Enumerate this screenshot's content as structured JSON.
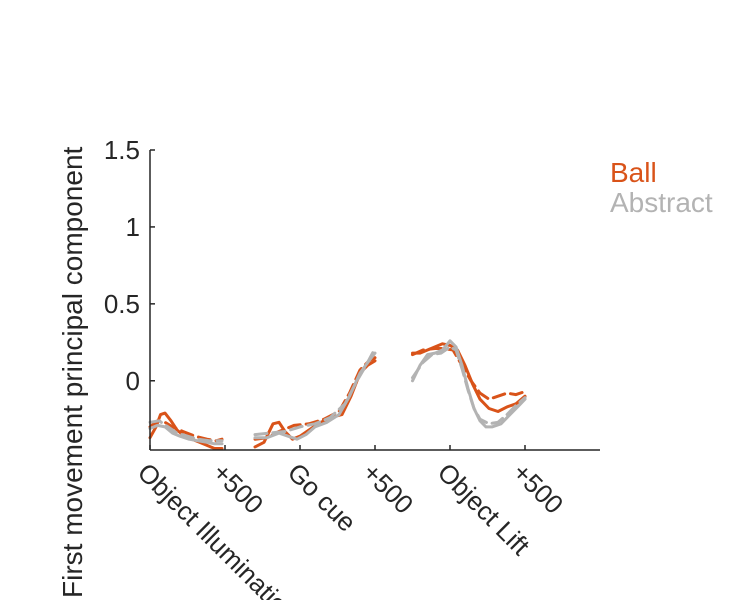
{
  "chart_data": {
    "type": "line",
    "ylabel": "First movement principal component",
    "ylim": [
      -0.45,
      1.5
    ],
    "yticks": [
      {
        "value": 0,
        "label": "0"
      },
      {
        "value": 0.5,
        "label": "0.5"
      },
      {
        "value": 1,
        "label": "1"
      },
      {
        "value": 1.5,
        "label": "1.5"
      }
    ],
    "xlim": [
      0,
      3000
    ],
    "xticks": [
      {
        "value": 0,
        "label": "Object Illumination"
      },
      {
        "value": 500,
        "label": "+500"
      },
      {
        "value": 1000,
        "label": "Go cue"
      },
      {
        "value": 1500,
        "label": "+500"
      },
      {
        "value": 2000,
        "label": "Object Lift"
      },
      {
        "value": 2500,
        "label": "+500"
      }
    ],
    "legend": {
      "position": "top-right",
      "entries": [
        "Ball",
        "Abstract"
      ]
    },
    "grid": false,
    "segments": [
      {
        "name": "Object Illumination",
        "x_start": 0,
        "x_end": 500
      },
      {
        "name": "Go cue",
        "x_start": 700,
        "x_end": 1700
      },
      {
        "name": "Object Lift",
        "x_start": 1750,
        "x_end": 2500
      }
    ],
    "series": [
      {
        "name": "Ball",
        "color": "#d95319",
        "lines": [
          {
            "style": "solid",
            "segment": 0,
            "points": [
              [
                0,
                -0.37
              ],
              [
                40,
                -0.3
              ],
              [
                70,
                -0.22
              ],
              [
                100,
                -0.21
              ],
              [
                140,
                -0.26
              ],
              [
                180,
                -0.32
              ],
              [
                230,
                -0.36
              ],
              [
                280,
                -0.38
              ],
              [
                330,
                -0.4
              ],
              [
                380,
                -0.42
              ],
              [
                430,
                -0.44
              ],
              [
                480,
                -0.44
              ]
            ]
          },
          {
            "style": "dashed",
            "segment": 0,
            "points": [
              [
                0,
                -0.3
              ],
              [
                50,
                -0.26
              ],
              [
                100,
                -0.27
              ],
              [
                150,
                -0.3
              ],
              [
                220,
                -0.33
              ],
              [
                300,
                -0.36
              ],
              [
                380,
                -0.38
              ],
              [
                440,
                -0.39
              ],
              [
                480,
                -0.38
              ]
            ]
          },
          {
            "style": "solid",
            "segment": 1,
            "points": [
              [
                700,
                -0.43
              ],
              [
                760,
                -0.4
              ],
              [
                820,
                -0.28
              ],
              [
                860,
                -0.27
              ],
              [
                900,
                -0.33
              ],
              [
                950,
                -0.38
              ],
              [
                1000,
                -0.36
              ],
              [
                1060,
                -0.32
              ],
              [
                1120,
                -0.28
              ],
              [
                1200,
                -0.24
              ],
              [
                1280,
                -0.22
              ],
              [
                1340,
                -0.1
              ],
              [
                1400,
                0.05
              ],
              [
                1450,
                0.1
              ],
              [
                1500,
                0.13
              ]
            ]
          },
          {
            "style": "dashed",
            "segment": 1,
            "points": [
              [
                700,
                -0.38
              ],
              [
                780,
                -0.37
              ],
              [
                860,
                -0.33
              ],
              [
                960,
                -0.29
              ],
              [
                1060,
                -0.28
              ],
              [
                1160,
                -0.25
              ],
              [
                1260,
                -0.2
              ],
              [
                1330,
                -0.08
              ],
              [
                1400,
                0.07
              ],
              [
                1460,
                0.13
              ],
              [
                1500,
                0.15
              ]
            ]
          },
          {
            "style": "solid",
            "segment": 2,
            "points": [
              [
                1750,
                0.18
              ],
              [
                1800,
                0.18
              ],
              [
                1850,
                0.2
              ],
              [
                1900,
                0.22
              ],
              [
                1950,
                0.24
              ],
              [
                2000,
                0.23
              ],
              [
                2050,
                0.2
              ],
              [
                2100,
                0.1
              ],
              [
                2150,
                -0.02
              ],
              [
                2200,
                -0.12
              ],
              [
                2260,
                -0.18
              ],
              [
                2320,
                -0.2
              ],
              [
                2380,
                -0.17
              ],
              [
                2440,
                -0.15
              ],
              [
                2500,
                -0.1
              ]
            ]
          },
          {
            "style": "dashed",
            "segment": 2,
            "points": [
              [
                1750,
                0.17
              ],
              [
                1820,
                0.2
              ],
              [
                1900,
                0.21
              ],
              [
                1960,
                0.21
              ],
              [
                2020,
                0.2
              ],
              [
                2080,
                0.1
              ],
              [
                2140,
                0.0
              ],
              [
                2200,
                -0.08
              ],
              [
                2260,
                -0.12
              ],
              [
                2320,
                -0.1
              ],
              [
                2380,
                -0.08
              ],
              [
                2440,
                -0.09
              ],
              [
                2500,
                -0.07
              ]
            ]
          }
        ]
      },
      {
        "name": "Abstract",
        "color": "#b3b3b3",
        "lines": [
          {
            "style": "solid",
            "segment": 0,
            "points": [
              [
                0,
                -0.31
              ],
              [
                50,
                -0.29
              ],
              [
                100,
                -0.3
              ],
              [
                150,
                -0.34
              ],
              [
                200,
                -0.36
              ],
              [
                260,
                -0.38
              ],
              [
                320,
                -0.39
              ],
              [
                380,
                -0.4
              ],
              [
                430,
                -0.41
              ],
              [
                480,
                -0.41
              ]
            ]
          },
          {
            "style": "dashed",
            "segment": 0,
            "points": [
              [
                0,
                -0.27
              ],
              [
                60,
                -0.26
              ],
              [
                120,
                -0.3
              ],
              [
                180,
                -0.34
              ],
              [
                250,
                -0.36
              ],
              [
                320,
                -0.38
              ],
              [
                400,
                -0.39
              ],
              [
                480,
                -0.39
              ]
            ]
          },
          {
            "style": "solid",
            "segment": 1,
            "points": [
              [
                700,
                -0.37
              ],
              [
                780,
                -0.37
              ],
              [
                860,
                -0.34
              ],
              [
                920,
                -0.36
              ],
              [
                980,
                -0.38
              ],
              [
                1040,
                -0.35
              ],
              [
                1100,
                -0.3
              ],
              [
                1180,
                -0.27
              ],
              [
                1260,
                -0.22
              ],
              [
                1330,
                -0.1
              ],
              [
                1400,
                0.05
              ],
              [
                1460,
                0.13
              ],
              [
                1500,
                0.18
              ]
            ]
          },
          {
            "style": "dashed",
            "segment": 1,
            "points": [
              [
                700,
                -0.35
              ],
              [
                800,
                -0.34
              ],
              [
                900,
                -0.33
              ],
              [
                1000,
                -0.3
              ],
              [
                1100,
                -0.28
              ],
              [
                1200,
                -0.24
              ],
              [
                1300,
                -0.15
              ],
              [
                1380,
                0.0
              ],
              [
                1440,
                0.1
              ],
              [
                1500,
                0.21
              ]
            ]
          },
          {
            "style": "solid",
            "segment": 2,
            "points": [
              [
                1750,
                0.0
              ],
              [
                1800,
                0.1
              ],
              [
                1850,
                0.17
              ],
              [
                1900,
                0.18
              ],
              [
                1950,
                0.2
              ],
              [
                2000,
                0.26
              ],
              [
                2040,
                0.22
              ],
              [
                2080,
                0.1
              ],
              [
                2120,
                -0.05
              ],
              [
                2160,
                -0.18
              ],
              [
                2200,
                -0.26
              ],
              [
                2240,
                -0.3
              ],
              [
                2280,
                -0.3
              ],
              [
                2340,
                -0.28
              ],
              [
                2400,
                -0.22
              ],
              [
                2460,
                -0.16
              ],
              [
                2500,
                -0.12
              ]
            ]
          },
          {
            "style": "dashed",
            "segment": 2,
            "points": [
              [
                1750,
                0.02
              ],
              [
                1820,
                0.12
              ],
              [
                1880,
                0.17
              ],
              [
                1940,
                0.18
              ],
              [
                2000,
                0.22
              ],
              [
                2040,
                0.2
              ],
              [
                2080,
                0.08
              ],
              [
                2120,
                -0.06
              ],
              [
                2160,
                -0.18
              ],
              [
                2200,
                -0.25
              ],
              [
                2260,
                -0.28
              ],
              [
                2320,
                -0.27
              ],
              [
                2380,
                -0.22
              ],
              [
                2440,
                -0.16
              ],
              [
                2500,
                -0.11
              ]
            ]
          }
        ]
      }
    ]
  }
}
